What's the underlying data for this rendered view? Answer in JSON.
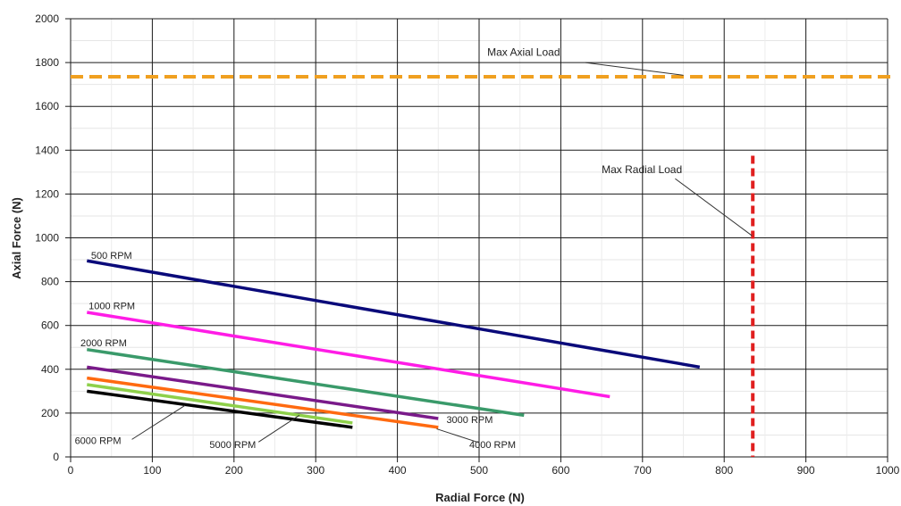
{
  "chart_data": {
    "type": "line",
    "title": "",
    "xlabel": "Radial Force (N)",
    "ylabel": "Axial Force (N)",
    "xlim": [
      0,
      1000
    ],
    "ylim": [
      0,
      2000
    ],
    "x_ticks": [
      "0",
      "100",
      "200",
      "300",
      "400",
      "500",
      "600",
      "700",
      "800",
      "900",
      "1000"
    ],
    "y_ticks": [
      "0",
      "200",
      "400",
      "600",
      "800",
      "1000",
      "1200",
      "1400",
      "1600",
      "1800",
      "2000"
    ],
    "grid": true,
    "series": [
      {
        "name": "500 RPM",
        "color": "#0a0a7a",
        "x": [
          20,
          770
        ],
        "y": [
          895,
          410
        ]
      },
      {
        "name": "1000 RPM",
        "color": "#ff1ce6",
        "x": [
          20,
          660
        ],
        "y": [
          660,
          275
        ]
      },
      {
        "name": "2000 RPM",
        "color": "#3a9a6a",
        "x": [
          20,
          555
        ],
        "y": [
          490,
          190
        ]
      },
      {
        "name": "3000 RPM",
        "color": "#7a1a8a",
        "x": [
          20,
          450
        ],
        "y": [
          410,
          175
        ]
      },
      {
        "name": "4000 RPM",
        "color": "#ff6a10",
        "x": [
          20,
          450
        ],
        "y": [
          360,
          135
        ]
      },
      {
        "name": "5000 RPM",
        "color": "#8ed04a",
        "x": [
          20,
          345
        ],
        "y": [
          330,
          155
        ]
      },
      {
        "name": "6000 RPM",
        "color": "#000000",
        "x": [
          20,
          345
        ],
        "y": [
          300,
          135
        ]
      }
    ],
    "reference_lines": [
      {
        "label": "Max Axial Load",
        "orientation": "horizontal",
        "value": 1735,
        "color": "#f0a020",
        "style": "dashed"
      },
      {
        "label": "Max Radial Load",
        "orientation": "vertical",
        "value": 835,
        "y_range": [
          0,
          1375
        ],
        "color": "#e02020",
        "style": "dashed"
      }
    ]
  }
}
